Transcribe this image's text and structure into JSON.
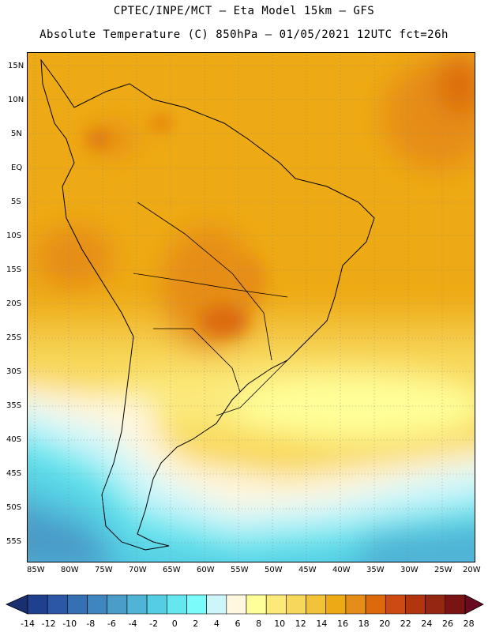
{
  "header": {
    "line1": "CPTEC/INPE/MCT –  Eta Model 15km – GFS",
    "line2": "Absolute Temperature (C) 850hPa – 01/05/2021 12UTC fct=26h"
  },
  "map": {
    "lat_labels": [
      "15N",
      "10N",
      "5N",
      "EQ",
      "5S",
      "10S",
      "15S",
      "20S",
      "25S",
      "30S",
      "35S",
      "40S",
      "45S",
      "50S",
      "55S"
    ],
    "lon_labels": [
      "85W",
      "80W",
      "75W",
      "70W",
      "65W",
      "60W",
      "55W",
      "50W",
      "45W",
      "40W",
      "35W",
      "30W",
      "25W",
      "20W"
    ]
  },
  "colorbar": {
    "labels": [
      "-14",
      "-12",
      "-10",
      "-8",
      "-6",
      "-4",
      "-2",
      "0",
      "2",
      "4",
      "6",
      "8",
      "10",
      "12",
      "14",
      "16",
      "18",
      "20",
      "22",
      "24",
      "26",
      "28"
    ],
    "colors": [
      "#1f3f8f",
      "#2b57a6",
      "#3570b4",
      "#3f86bf",
      "#4a9cc9",
      "#50b4d6",
      "#55cde3",
      "#66e6ee",
      "#7cfbfb",
      "#cdf6fb",
      "#fff7e0",
      "#ffff99",
      "#fbe97a",
      "#f8d85a",
      "#f3c23b",
      "#eeaa14",
      "#e68d19",
      "#dc6a0c",
      "#cd4b12",
      "#b23510",
      "#952612",
      "#7a1414"
    ]
  }
}
